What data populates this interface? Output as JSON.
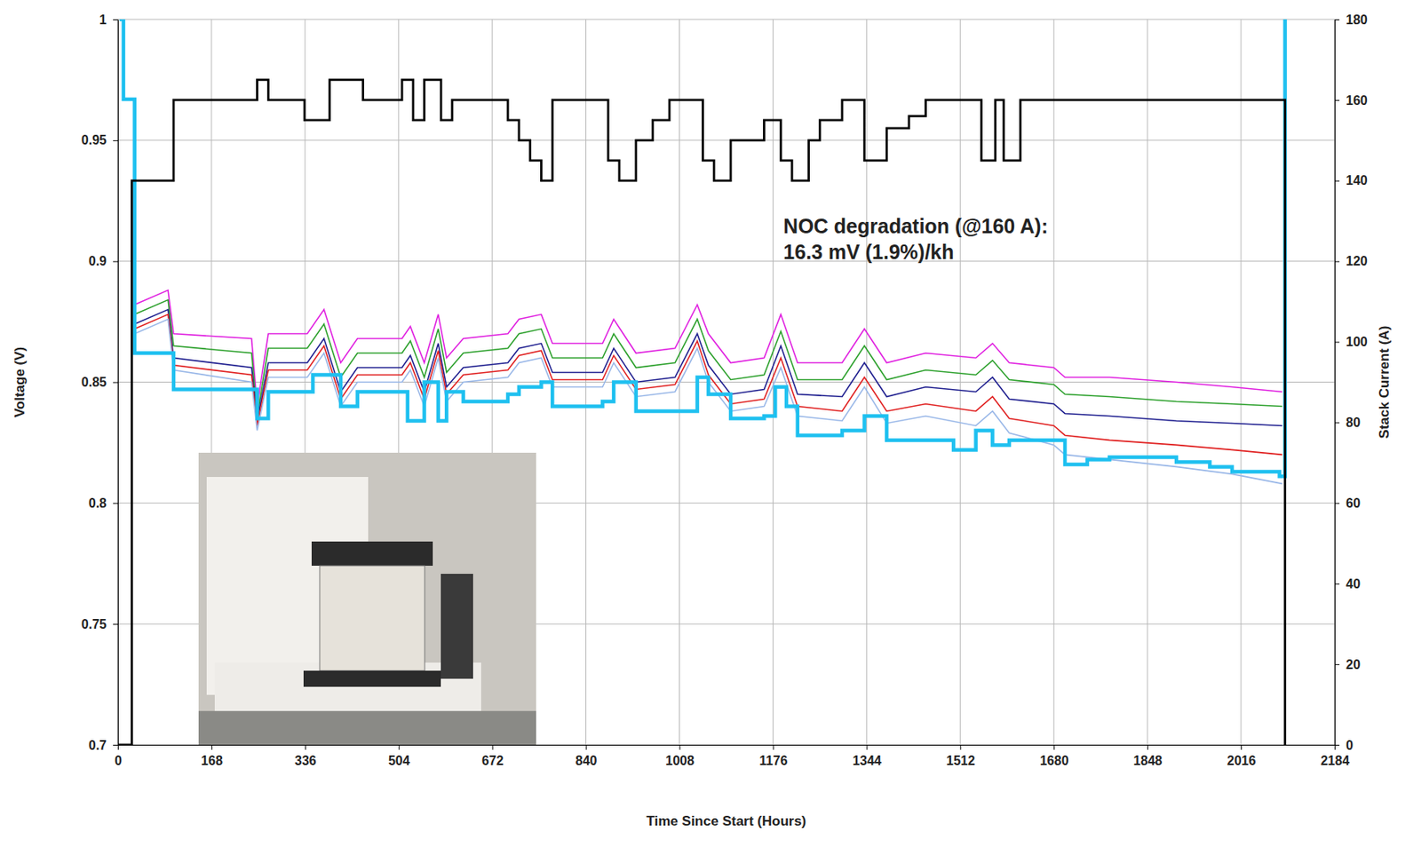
{
  "chart_data": {
    "type": "line",
    "x_label": "Time Since Start (Hours)",
    "y_label": "Voltage (V)",
    "y2_label": "Stack Current (A)",
    "annotation": [
      "NOC degradation (@160 A):",
      "16.3 mV (1.9%)/kh"
    ],
    "xlim": [
      0,
      2184
    ],
    "xticks": [
      0,
      168,
      336,
      504,
      672,
      840,
      1008,
      1176,
      1344,
      1512,
      1680,
      1848,
      2016,
      2184
    ],
    "ylim": [
      0.7,
      1
    ],
    "yticks": [
      0.7,
      0.75,
      0.8,
      0.85,
      0.9,
      0.95,
      1
    ],
    "y2lim": [
      0,
      180
    ],
    "y2ticks": [
      0,
      20,
      40,
      60,
      80,
      100,
      120,
      140,
      160,
      180
    ],
    "grid": true,
    "series": [
      {
        "color": "#e020e0",
        "line_style": "solid",
        "x": [
          30,
          90,
          100,
          240,
          250,
          270,
          340,
          370,
          400,
          430,
          510,
          525,
          550,
          575,
          590,
          620,
          700,
          720,
          760,
          780,
          870,
          890,
          930,
          1000,
          1040,
          1060,
          1100,
          1160,
          1190,
          1220,
          1300,
          1340,
          1380,
          1450,
          1540,
          1570,
          1600,
          1680,
          1700,
          1780,
          1900,
          2000,
          2090
        ],
        "values": [
          0.882,
          0.888,
          0.87,
          0.868,
          0.84,
          0.87,
          0.87,
          0.88,
          0.858,
          0.868,
          0.868,
          0.873,
          0.858,
          0.878,
          0.86,
          0.868,
          0.87,
          0.876,
          0.878,
          0.866,
          0.866,
          0.876,
          0.862,
          0.864,
          0.882,
          0.87,
          0.858,
          0.86,
          0.878,
          0.858,
          0.858,
          0.872,
          0.858,
          0.862,
          0.86,
          0.866,
          0.858,
          0.856,
          0.852,
          0.852,
          0.85,
          0.848,
          0.846
        ]
      },
      {
        "color": "#2ca02c",
        "line_style": "solid",
        "x": [
          30,
          90,
          100,
          240,
          250,
          270,
          340,
          370,
          400,
          430,
          510,
          525,
          550,
          575,
          590,
          620,
          700,
          720,
          760,
          780,
          870,
          890,
          930,
          1000,
          1040,
          1060,
          1100,
          1160,
          1190,
          1220,
          1300,
          1340,
          1380,
          1450,
          1540,
          1570,
          1600,
          1680,
          1700,
          1780,
          1900,
          2000,
          2090
        ],
        "values": [
          0.878,
          0.884,
          0.865,
          0.862,
          0.836,
          0.864,
          0.864,
          0.874,
          0.852,
          0.862,
          0.862,
          0.867,
          0.852,
          0.872,
          0.854,
          0.862,
          0.864,
          0.87,
          0.872,
          0.86,
          0.86,
          0.87,
          0.856,
          0.858,
          0.876,
          0.863,
          0.851,
          0.853,
          0.871,
          0.851,
          0.851,
          0.865,
          0.851,
          0.855,
          0.853,
          0.859,
          0.851,
          0.849,
          0.845,
          0.844,
          0.842,
          0.841,
          0.84
        ]
      },
      {
        "color": "#1f1f8f",
        "line_style": "solid",
        "x": [
          30,
          90,
          100,
          240,
          250,
          270,
          340,
          370,
          400,
          430,
          510,
          525,
          550,
          575,
          590,
          620,
          700,
          720,
          760,
          780,
          870,
          890,
          930,
          1000,
          1040,
          1060,
          1100,
          1160,
          1190,
          1220,
          1300,
          1340,
          1380,
          1450,
          1540,
          1570,
          1600,
          1680,
          1700,
          1780,
          1900,
          2000,
          2090
        ],
        "values": [
          0.874,
          0.88,
          0.86,
          0.856,
          0.834,
          0.858,
          0.858,
          0.868,
          0.846,
          0.856,
          0.856,
          0.861,
          0.846,
          0.866,
          0.848,
          0.856,
          0.858,
          0.864,
          0.866,
          0.854,
          0.854,
          0.864,
          0.85,
          0.852,
          0.87,
          0.857,
          0.845,
          0.847,
          0.865,
          0.845,
          0.844,
          0.858,
          0.844,
          0.848,
          0.846,
          0.852,
          0.843,
          0.841,
          0.837,
          0.836,
          0.834,
          0.833,
          0.832
        ]
      },
      {
        "color": "#e02020",
        "line_style": "solid",
        "x": [
          30,
          90,
          100,
          240,
          250,
          270,
          340,
          370,
          400,
          430,
          510,
          525,
          550,
          575,
          590,
          620,
          700,
          720,
          760,
          780,
          870,
          890,
          930,
          1000,
          1040,
          1060,
          1100,
          1160,
          1190,
          1220,
          1300,
          1340,
          1380,
          1450,
          1540,
          1570,
          1600,
          1680,
          1700,
          1780,
          1900,
          2000,
          2090
        ],
        "values": [
          0.872,
          0.878,
          0.857,
          0.853,
          0.832,
          0.855,
          0.855,
          0.865,
          0.843,
          0.853,
          0.853,
          0.858,
          0.843,
          0.863,
          0.845,
          0.853,
          0.855,
          0.861,
          0.863,
          0.851,
          0.851,
          0.861,
          0.847,
          0.849,
          0.867,
          0.853,
          0.841,
          0.843,
          0.86,
          0.84,
          0.838,
          0.852,
          0.838,
          0.841,
          0.838,
          0.844,
          0.835,
          0.832,
          0.828,
          0.826,
          0.824,
          0.822,
          0.82
        ]
      },
      {
        "color": "#9ab8e8",
        "line_style": "solid",
        "x": [
          30,
          90,
          100,
          240,
          250,
          270,
          340,
          370,
          400,
          430,
          510,
          525,
          550,
          575,
          590,
          620,
          700,
          720,
          760,
          780,
          870,
          890,
          930,
          1000,
          1040,
          1060,
          1100,
          1160,
          1190,
          1220,
          1300,
          1340,
          1380,
          1450,
          1540,
          1570,
          1600,
          1680,
          1700,
          1780,
          1900,
          2000,
          2090
        ],
        "values": [
          0.87,
          0.876,
          0.855,
          0.85,
          0.83,
          0.852,
          0.852,
          0.862,
          0.84,
          0.85,
          0.85,
          0.855,
          0.84,
          0.86,
          0.842,
          0.85,
          0.852,
          0.858,
          0.86,
          0.848,
          0.848,
          0.858,
          0.844,
          0.846,
          0.864,
          0.85,
          0.838,
          0.84,
          0.856,
          0.836,
          0.834,
          0.848,
          0.833,
          0.836,
          0.832,
          0.838,
          0.829,
          0.824,
          0.82,
          0.818,
          0.815,
          0.812,
          0.808
        ]
      },
      {
        "color": "#1ec0f0",
        "line_style": "step",
        "x": [
          3,
          10,
          20,
          30,
          90,
          100,
          240,
          250,
          270,
          340,
          350,
          380,
          400,
          430,
          510,
          520,
          550,
          575,
          590,
          620,
          700,
          720,
          760,
          780,
          870,
          890,
          930,
          1020,
          1040,
          1060,
          1100,
          1160,
          1180,
          1200,
          1220,
          1300,
          1340,
          1380,
          1400,
          1500,
          1540,
          1570,
          1600,
          1680,
          1700,
          1740,
          1780,
          1900,
          1960,
          2000,
          2085,
          2095
        ],
        "values": [
          1.0,
          0.967,
          0.967,
          0.862,
          0.862,
          0.847,
          0.847,
          0.835,
          0.846,
          0.846,
          0.853,
          0.853,
          0.84,
          0.846,
          0.846,
          0.834,
          0.85,
          0.834,
          0.846,
          0.842,
          0.845,
          0.848,
          0.85,
          0.84,
          0.842,
          0.85,
          0.838,
          0.838,
          0.852,
          0.845,
          0.835,
          0.836,
          0.848,
          0.84,
          0.828,
          0.83,
          0.836,
          0.826,
          0.826,
          0.822,
          0.83,
          0.824,
          0.826,
          0.826,
          0.816,
          0.818,
          0.819,
          0.817,
          0.815,
          0.813,
          0.811,
          1.0
        ]
      },
      {
        "color": "#000000",
        "line_style": "step",
        "axis": "y2",
        "x": [
          0,
          25,
          100,
          250,
          270,
          335,
          380,
          440,
          510,
          530,
          550,
          580,
          600,
          700,
          720,
          740,
          760,
          780,
          880,
          900,
          930,
          960,
          990,
          1050,
          1070,
          1100,
          1160,
          1190,
          1210,
          1240,
          1260,
          1300,
          1340,
          1380,
          1420,
          1450,
          1550,
          1575,
          1590,
          1620,
          2095
        ],
        "values": [
          0,
          140,
          160,
          165,
          160,
          155,
          165,
          160,
          165,
          155,
          165,
          155,
          160,
          155,
          150,
          145,
          140,
          160,
          145,
          140,
          150,
          155,
          160,
          145,
          140,
          150,
          155,
          145,
          140,
          150,
          155,
          160,
          145,
          153,
          156,
          160,
          145,
          160,
          145,
          160,
          0
        ]
      }
    ]
  }
}
